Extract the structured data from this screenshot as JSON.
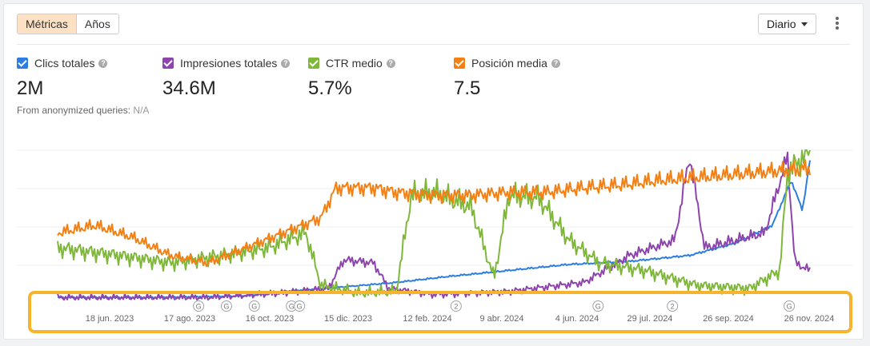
{
  "tabs": [
    {
      "label": "Métricas",
      "active": true
    },
    {
      "label": "Años",
      "active": false
    }
  ],
  "granularity": {
    "label": "Diario"
  },
  "metrics": [
    {
      "label": "Clics totales",
      "value": "2M",
      "color": "#2d7ee0"
    },
    {
      "label": "Impresiones totales",
      "value": "34.6M",
      "color": "#8e44ad"
    },
    {
      "label": "CTR medio",
      "value": "5.7%",
      "color": "#7fb73a"
    },
    {
      "label": "Posición media",
      "value": "7.5",
      "color": "#f47f12"
    }
  ],
  "anonymized": {
    "label": "From anonymized queries:",
    "value": "N/A"
  },
  "chart_data": {
    "type": "line",
    "x_tick_labels": [
      "18 jun. 2023",
      "17 ago. 2023",
      "16 oct. 2023",
      "15 dic. 2023",
      "12 feb. 2024",
      "9 abr. 2024",
      "4 jun. 2024",
      "29 jul. 2024",
      "26 sep. 2024",
      "26 nov. 2024"
    ],
    "grid": true,
    "annotations": [
      {
        "label": "G",
        "date": "2023-08-24"
      },
      {
        "label": "G",
        "date": "2023-09-14"
      },
      {
        "label": "G",
        "date": "2023-10-05"
      },
      {
        "label": "G",
        "date": "2023-11-02"
      },
      {
        "label": "G",
        "date": "2023-11-08"
      },
      {
        "label": "2",
        "date": "2024-03-05"
      },
      {
        "label": "G",
        "date": "2024-06-20"
      },
      {
        "label": "2",
        "date": "2024-08-15"
      },
      {
        "label": "G",
        "date": "2024-11-11"
      }
    ],
    "series": [
      {
        "name": "Clics totales",
        "color": "#2d7ee0",
        "points": [
          [
            0,
            0.02
          ],
          [
            0.12,
            0.02
          ],
          [
            0.25,
            0.03
          ],
          [
            0.3,
            0.06
          ],
          [
            0.38,
            0.09
          ],
          [
            0.45,
            0.12
          ],
          [
            0.52,
            0.16
          ],
          [
            0.6,
            0.2
          ],
          [
            0.68,
            0.24
          ],
          [
            0.76,
            0.26
          ],
          [
            0.84,
            0.3
          ],
          [
            0.9,
            0.38
          ],
          [
            0.95,
            0.5
          ],
          [
            0.975,
            0.8
          ],
          [
            0.99,
            0.6
          ],
          [
            1,
            0.93
          ]
        ]
      },
      {
        "name": "Impresiones totales",
        "color": "#8e44ad",
        "points": [
          [
            0,
            0.02
          ],
          [
            0.2,
            0.02
          ],
          [
            0.3,
            0.05
          ],
          [
            0.36,
            0.08
          ],
          [
            0.38,
            0.27
          ],
          [
            0.42,
            0.25
          ],
          [
            0.44,
            0.08
          ],
          [
            0.5,
            0.04
          ],
          [
            0.6,
            0.06
          ],
          [
            0.7,
            0.12
          ],
          [
            0.76,
            0.3
          ],
          [
            0.82,
            0.4
          ],
          [
            0.84,
            0.96
          ],
          [
            0.86,
            0.35
          ],
          [
            0.9,
            0.4
          ],
          [
            0.94,
            0.45
          ],
          [
            0.97,
            0.96
          ],
          [
            0.98,
            0.25
          ],
          [
            1,
            0.2
          ]
        ]
      },
      {
        "name": "CTR medio",
        "color": "#7fb73a",
        "points": [
          [
            0,
            0.35
          ],
          [
            0.08,
            0.3
          ],
          [
            0.15,
            0.25
          ],
          [
            0.22,
            0.3
          ],
          [
            0.28,
            0.35
          ],
          [
            0.33,
            0.45
          ],
          [
            0.35,
            0.1
          ],
          [
            0.4,
            0.05
          ],
          [
            0.45,
            0.06
          ],
          [
            0.47,
            0.7
          ],
          [
            0.5,
            0.72
          ],
          [
            0.55,
            0.62
          ],
          [
            0.58,
            0.15
          ],
          [
            0.6,
            0.7
          ],
          [
            0.64,
            0.68
          ],
          [
            0.68,
            0.4
          ],
          [
            0.72,
            0.25
          ],
          [
            0.78,
            0.2
          ],
          [
            0.85,
            0.1
          ],
          [
            0.92,
            0.08
          ],
          [
            0.96,
            0.2
          ],
          [
            0.97,
            0.85
          ],
          [
            1,
            1.0
          ]
        ]
      },
      {
        "name": "Posición media",
        "color": "#f47f12",
        "points": [
          [
            0,
            0.45
          ],
          [
            0.05,
            0.5
          ],
          [
            0.1,
            0.42
          ],
          [
            0.15,
            0.3
          ],
          [
            0.2,
            0.25
          ],
          [
            0.25,
            0.35
          ],
          [
            0.3,
            0.45
          ],
          [
            0.35,
            0.55
          ],
          [
            0.37,
            0.75
          ],
          [
            0.42,
            0.75
          ],
          [
            0.45,
            0.72
          ],
          [
            0.5,
            0.7
          ],
          [
            0.55,
            0.7
          ],
          [
            0.6,
            0.72
          ],
          [
            0.65,
            0.72
          ],
          [
            0.7,
            0.75
          ],
          [
            0.75,
            0.77
          ],
          [
            0.8,
            0.8
          ],
          [
            0.85,
            0.82
          ],
          [
            0.9,
            0.84
          ],
          [
            0.95,
            0.86
          ],
          [
            1,
            0.88
          ]
        ]
      }
    ]
  }
}
